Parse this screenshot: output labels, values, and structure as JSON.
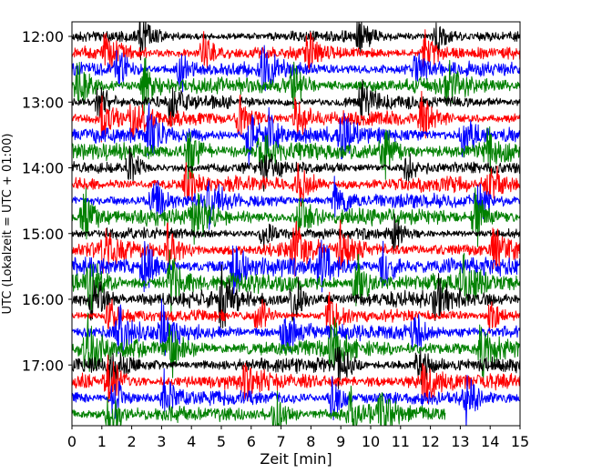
{
  "chart_data": {
    "type": "line",
    "title": "",
    "xlabel": "Zeit  [min]",
    "ylabel": "UTC (Lokalzeit = UTC + 01:00)",
    "xlim": [
      0,
      15
    ],
    "x_ticks": [
      0,
      1,
      2,
      3,
      4,
      5,
      6,
      7,
      8,
      9,
      10,
      11,
      12,
      13,
      14,
      15
    ],
    "y_ticks": [
      "12:00",
      "13:00",
      "14:00",
      "15:00",
      "16:00",
      "17:00"
    ],
    "grid": false,
    "trace_minutes": 15,
    "trace_colors": [
      "#000000",
      "#ff0000",
      "#0000ff",
      "#008000"
    ],
    "traces": [
      {
        "start": "12:00",
        "amplitude": 1.0,
        "events": [
          2.3,
          9.6,
          12.2
        ]
      },
      {
        "start": "12:15",
        "amplitude": 1.2,
        "events": [
          1.1,
          4.4,
          7.9,
          11.8
        ]
      },
      {
        "start": "12:30",
        "amplitude": 1.3,
        "events": [
          1.5,
          3.6,
          6.4,
          11.5
        ]
      },
      {
        "start": "12:45",
        "amplitude": 1.5,
        "events": [
          0.2,
          2.4,
          7.4,
          12.6
        ]
      },
      {
        "start": "13:00",
        "amplitude": 1.2,
        "events": [
          0.9,
          3.3,
          9.7
        ]
      },
      {
        "start": "13:15",
        "amplitude": 1.4,
        "events": [
          1.0,
          2.0,
          5.6,
          7.5,
          11.7
        ]
      },
      {
        "start": "13:30",
        "amplitude": 1.5,
        "events": [
          2.6,
          5.9,
          6.6,
          9.0,
          13.1
        ]
      },
      {
        "start": "13:45",
        "amplitude": 1.6,
        "events": [
          3.9,
          6.3,
          10.4,
          13.9
        ]
      },
      {
        "start": "14:00",
        "amplitude": 1.1,
        "events": [
          1.9,
          6.4,
          11.2
        ]
      },
      {
        "start": "14:15",
        "amplitude": 1.4,
        "events": [
          3.8,
          7.6,
          14.0
        ]
      },
      {
        "start": "14:30",
        "amplitude": 1.3,
        "events": [
          2.7,
          4.6,
          8.8,
          13.6
        ]
      },
      {
        "start": "14:45",
        "amplitude": 1.6,
        "events": [
          0.4,
          4.1,
          7.6,
          13.5
        ]
      },
      {
        "start": "15:00",
        "amplitude": 1.0,
        "events": [
          6.4,
          10.8
        ]
      },
      {
        "start": "15:15",
        "amplitude": 1.5,
        "events": [
          1.1,
          3.2,
          7.4,
          9.0,
          14.1
        ]
      },
      {
        "start": "15:30",
        "amplitude": 1.6,
        "events": [
          2.4,
          5.4,
          8.3,
          10.4
        ]
      },
      {
        "start": "15:45",
        "amplitude": 1.7,
        "events": [
          0.6,
          3.3,
          9.5,
          13.1
        ]
      },
      {
        "start": "16:00",
        "amplitude": 1.6,
        "events": [
          0.7,
          5.0,
          7.4,
          12.2
        ]
      },
      {
        "start": "16:15",
        "amplitude": 1.1,
        "events": [
          1.2,
          6.2,
          8.6,
          14.0
        ]
      },
      {
        "start": "16:30",
        "amplitude": 1.5,
        "events": [
          1.6,
          3.0,
          7.1,
          11.4
        ]
      },
      {
        "start": "16:45",
        "amplitude": 1.6,
        "events": [
          0.5,
          3.3,
          8.7,
          13.7
        ]
      },
      {
        "start": "17:00",
        "amplitude": 1.3,
        "events": [
          1.3,
          8.9,
          11.6
        ]
      },
      {
        "start": "17:15",
        "amplitude": 1.5,
        "events": [
          1.2,
          5.8,
          11.8
        ]
      },
      {
        "start": "17:30",
        "amplitude": 1.3,
        "events": [
          1.4,
          3.1,
          8.7,
          13.2
        ]
      },
      {
        "start": "17:45",
        "amplitude": 1.4,
        "end_minute": 12.5,
        "events": [
          1.2,
          6.8,
          9.3,
          10.3
        ]
      }
    ]
  }
}
